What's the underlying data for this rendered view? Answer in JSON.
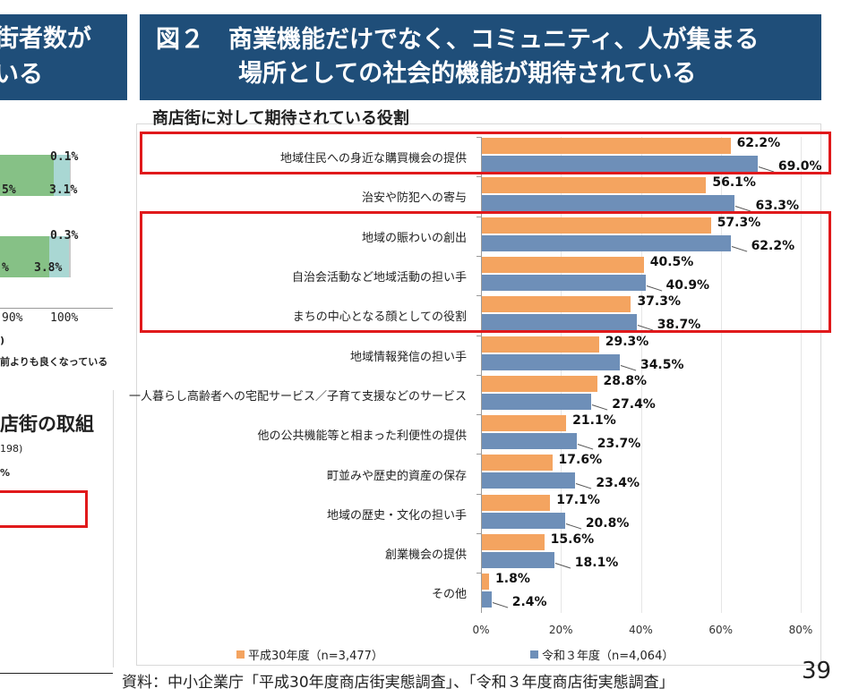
{
  "left_panel": {
    "banner_line1": "街者数が",
    "banner_line2": "いる",
    "bar1_top_label": "0.1%",
    "bar1_label_a": "5%",
    "bar1_label_b": "3.1%",
    "bar2_top_label": "0.3%",
    "bar2_label_a": "%",
    "bar2_label_b": "3.8%",
    "axis_tick_a": "90%",
    "axis_tick_b": "100%",
    "note1": ")",
    "note2": "前よりも良くなっている",
    "heading": "店街の取組",
    "sub": "198)",
    "pct": "%"
  },
  "title": {
    "line1": "図２　商業機能だけでなく、コミュニティ、人が集まる",
    "line2": "場所としての社会的機能が期待されている"
  },
  "chart_data": {
    "type": "bar",
    "orientation": "horizontal",
    "title": "商店街に対して期待されている役割",
    "categories": [
      "地域住民への身近な購買機会の提供",
      "治安や防犯への寄与",
      "地域の賑わいの創出",
      "自治会活動など地域活動の担い手",
      "まちの中心となる顔としての役割",
      "地域情報発信の担い手",
      "一人暮らし高齢者への宅配サービス／子育て支援などのサービス",
      "他の公共機能等と相まった利便性の提供",
      "町並みや歴史的資産の保存",
      "地域の歴史・文化の担い手",
      "創業機会の提供",
      "その他"
    ],
    "series": [
      {
        "name": "平成30年度（n=3,477）",
        "color": "#f4a460",
        "values": [
          62.2,
          56.1,
          57.3,
          40.5,
          37.3,
          29.3,
          28.8,
          21.1,
          17.6,
          17.1,
          15.6,
          1.8
        ],
        "labels": [
          "62.2%",
          "56.1%",
          "57.3%",
          "40.5%",
          "37.3%",
          "29.3%",
          "28.8%",
          "21.1%",
          "17.6%",
          "17.1%",
          "15.6%",
          "1.8%"
        ]
      },
      {
        "name": "令和３年度（n=4,064）",
        "color": "#6e8fb8",
        "values": [
          69.0,
          63.3,
          62.2,
          40.9,
          38.7,
          34.5,
          27.4,
          23.7,
          23.4,
          20.8,
          18.1,
          2.4
        ],
        "labels": [
          "69.0%",
          "63.3%",
          "62.2%",
          "40.9%",
          "38.7%",
          "34.5%",
          "27.4%",
          "23.7%",
          "23.4%",
          "20.8%",
          "18.1%",
          "2.4%"
        ]
      }
    ],
    "xlim": [
      0,
      80
    ],
    "xticks": [
      0,
      20,
      40,
      60,
      80
    ],
    "xtick_labels": [
      "0%",
      "20%",
      "40%",
      "60%",
      "80%"
    ],
    "legend_position": "bottom",
    "highlighted_categories": [
      [
        0
      ],
      [
        2,
        3,
        4
      ]
    ]
  },
  "legend": {
    "series1": "平成30年度（n=3,477）",
    "series2": "令和３年度（n=4,064）"
  },
  "footer": {
    "source": "資料：中小企業庁「平成30年度商店街実態調査」、「令和３年度商店街実態調査」",
    "page_number": "39"
  }
}
